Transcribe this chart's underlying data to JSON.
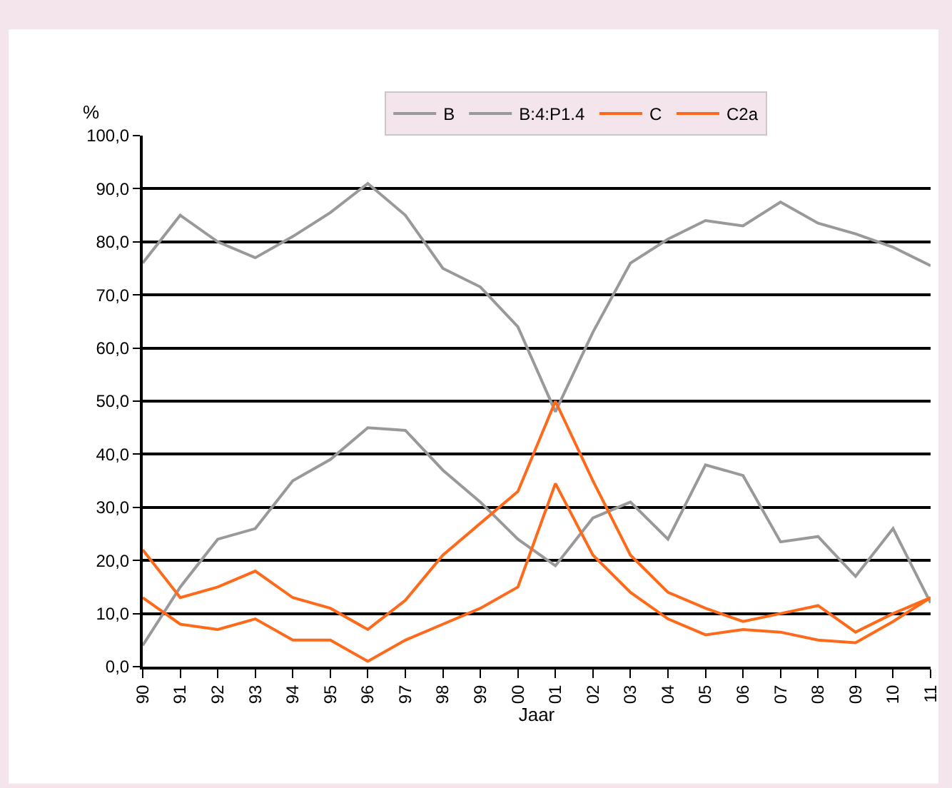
{
  "chart_data": {
    "type": "line",
    "xlabel": "Jaar",
    "ylabel": "%",
    "categories": [
      "90",
      "91",
      "92",
      "93",
      "94",
      "95",
      "96",
      "97",
      "98",
      "99",
      "00",
      "01",
      "02",
      "03",
      "04",
      "05",
      "06",
      "07",
      "08",
      "09",
      "10",
      "11"
    ],
    "series": [
      {
        "name": "B",
        "color": "#999999",
        "values": [
          76,
          85,
          80,
          77,
          81,
          85.5,
          91,
          85,
          75,
          71.5,
          64,
          48,
          63,
          76,
          80.5,
          84,
          83,
          87.5,
          83.5,
          81.5,
          79,
          75.5
        ]
      },
      {
        "name": "B:4:P1.4",
        "color": "#999999",
        "values": [
          4,
          15,
          24,
          26,
          35,
          39,
          45,
          44.5,
          37,
          31,
          24,
          19,
          28,
          31,
          24,
          38,
          36,
          23.5,
          24.5,
          17,
          26,
          12
        ]
      },
      {
        "name": "C",
        "color": "#ff6a1a",
        "values": [
          22,
          13,
          15,
          18,
          13,
          11,
          7,
          12.5,
          21,
          27,
          33,
          50,
          35,
          21,
          14,
          11,
          8.5,
          10,
          11.5,
          6.5,
          10,
          13
        ]
      },
      {
        "name": "C2a",
        "color": "#ff6a1a",
        "values": [
          13,
          8,
          7,
          9,
          5,
          5,
          1,
          5,
          8,
          11,
          15,
          34.5,
          21,
          14,
          9,
          6,
          7,
          6.5,
          5,
          4.5,
          8.5,
          13
        ]
      }
    ],
    "ylim": [
      0,
      100
    ],
    "yticks": [
      {
        "value": 0,
        "label": "0,0"
      },
      {
        "value": 10,
        "label": "10,0"
      },
      {
        "value": 20,
        "label": "20,0"
      },
      {
        "value": 30,
        "label": "30,0"
      },
      {
        "value": 40,
        "label": "40,0"
      },
      {
        "value": 50,
        "label": "50,0"
      },
      {
        "value": 60,
        "label": "60,0"
      },
      {
        "value": 70,
        "label": "70,0"
      },
      {
        "value": 80,
        "label": "80,0"
      },
      {
        "value": 90,
        "label": "90,0"
      },
      {
        "value": 100,
        "label": "100,0"
      }
    ],
    "grid": "y",
    "legend": "top",
    "marker": "none",
    "line_style": "solid"
  }
}
